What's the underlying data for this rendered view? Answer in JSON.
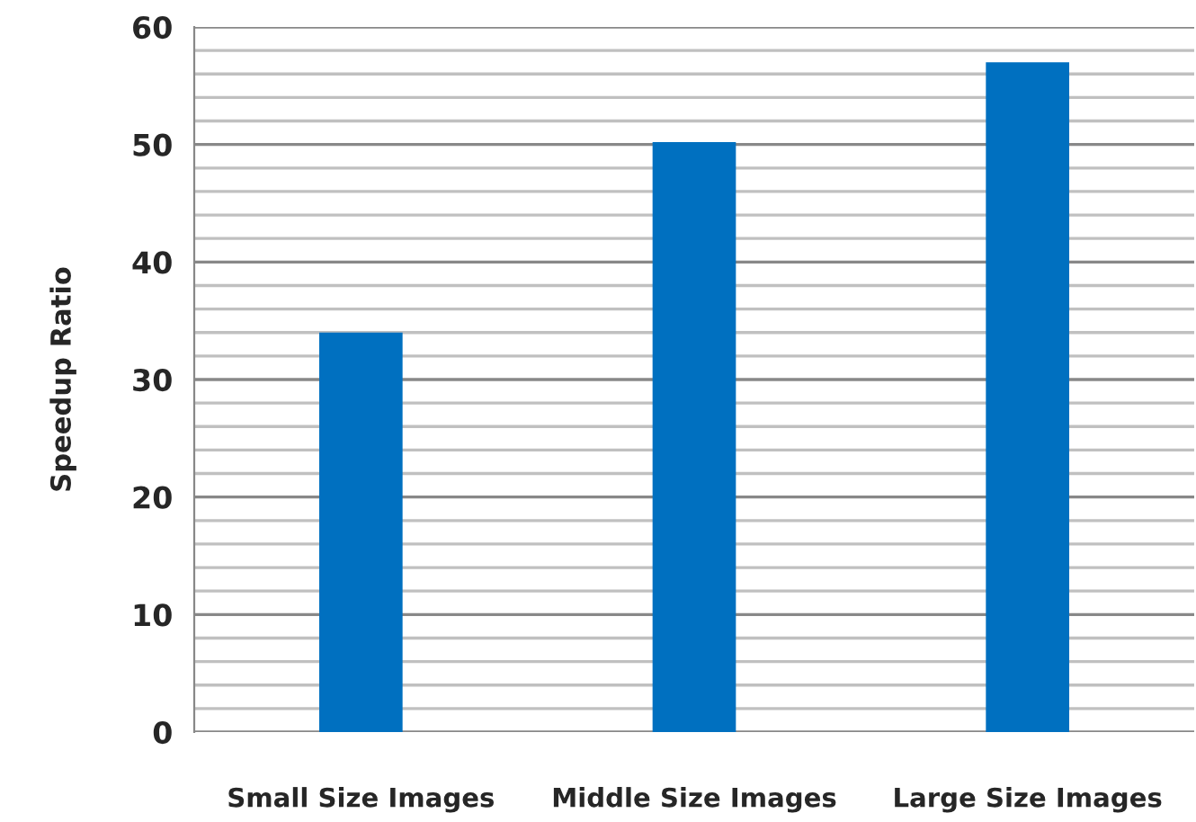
{
  "chart_data": {
    "type": "bar",
    "ylabel": "Speedup Ratio",
    "categories": [
      "Small Size Images",
      "Middle Size Images",
      "Large Size Images"
    ],
    "values": [
      34.0,
      50.2,
      57.0
    ],
    "color": "#0070c0",
    "ylim": [
      0,
      60
    ],
    "yticks": [
      0,
      {
        "value": 2,
        "label": null
      },
      {
        "value": 4,
        "label": null
      },
      {
        "value": 6,
        "label": null
      },
      {
        "value": 8,
        "label": null
      },
      10,
      {
        "value": 12,
        "label": null
      },
      {
        "value": 14,
        "label": null
      },
      {
        "value": 16,
        "label": null
      },
      {
        "value": 18,
        "label": null
      },
      20,
      {
        "value": 22,
        "label": null
      },
      {
        "value": 24,
        "label": null
      },
      {
        "value": 26,
        "label": null
      },
      {
        "value": 28,
        "label": null
      },
      30,
      {
        "value": 32,
        "label": null
      },
      {
        "value": 34,
        "label": null
      },
      {
        "value": 36,
        "label": null
      },
      {
        "value": 38,
        "label": null
      },
      40,
      {
        "value": 42,
        "label": null
      },
      {
        "value": 44,
        "label": null
      },
      {
        "value": 46,
        "label": null
      },
      {
        "value": 48,
        "label": null
      },
      50,
      {
        "value": 52,
        "label": null
      },
      {
        "value": 54,
        "label": null
      },
      {
        "value": 56,
        "label": null
      },
      {
        "value": 58,
        "label": null
      },
      60
    ],
    "grid": "y"
  }
}
